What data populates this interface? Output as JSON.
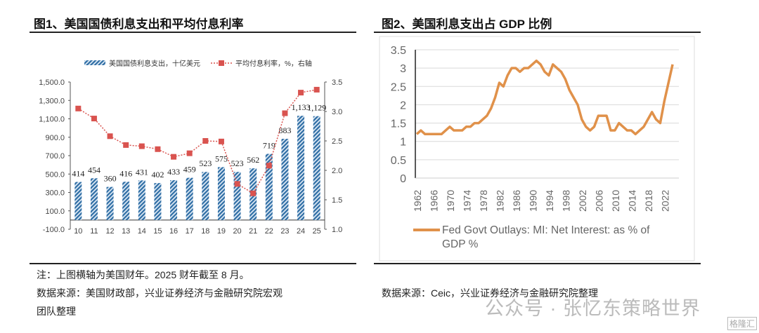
{
  "left": {
    "title": "图1、美国国债利息支出和平均付息利率",
    "note": "注：上图横轴为美国财年。2025 财年截至 8 月。",
    "source_line1": "数据来源：美国财政部，兴业证券经济与金融研究院宏观",
    "source_line2": "团队整理"
  },
  "right": {
    "title": "图2、美国利息支出占 GDP 比例",
    "source": "数据来源：Ceic，兴业证券经济与金融研究院整理"
  },
  "watermark": "公众号 · 张忆东策略世界",
  "watermark2": "格隆汇",
  "chart_data": [
    {
      "type": "bar",
      "categories": [
        "10",
        "11",
        "12",
        "13",
        "14",
        "15",
        "16",
        "17",
        "18",
        "19",
        "20",
        "21",
        "22",
        "23",
        "24",
        "25"
      ],
      "series": [
        {
          "name": "美国国债利息支出，十亿美元",
          "type": "bar",
          "axis": "left",
          "color": "#2e6da4",
          "values": [
            414,
            454,
            360,
            416,
            431,
            402,
            433,
            459,
            523,
            575,
            523,
            562,
            719,
            883,
            1133,
            1129
          ],
          "labels": [
            "414",
            "454",
            "360",
            "416",
            "431",
            "402",
            "433",
            "459",
            "523",
            "575",
            "523",
            "562",
            "719",
            "883",
            "1,133",
            "1,129"
          ]
        },
        {
          "name": "平均付息利率，%，右轴",
          "type": "line",
          "axis": "right",
          "color": "#d9534f",
          "values": [
            3.05,
            2.88,
            2.58,
            2.43,
            2.41,
            2.36,
            2.23,
            2.29,
            2.5,
            2.49,
            1.77,
            1.61,
            2.08,
            2.97,
            3.32,
            3.37
          ]
        }
      ],
      "ylim": [
        -100,
        1500
      ],
      "yticks": [
        "1,500.0",
        "1,300.0",
        "1,100.0",
        "900.0",
        "700.0",
        "500.0",
        "300.0",
        "100.0",
        "-100.0"
      ],
      "y2lim": [
        1.0,
        3.5
      ],
      "y2ticks": [
        "3.5",
        "3.0",
        "2.5",
        "2.0",
        "1.5",
        "1.0"
      ],
      "legend": "top"
    },
    {
      "type": "line",
      "x": [
        1962,
        1963,
        1964,
        1965,
        1966,
        1967,
        1968,
        1969,
        1970,
        1971,
        1972,
        1973,
        1974,
        1975,
        1976,
        1977,
        1978,
        1979,
        1980,
        1981,
        1982,
        1983,
        1984,
        1985,
        1986,
        1987,
        1988,
        1989,
        1990,
        1991,
        1992,
        1993,
        1994,
        1995,
        1996,
        1997,
        1998,
        1999,
        2000,
        2001,
        2002,
        2003,
        2004,
        2005,
        2006,
        2007,
        2008,
        2009,
        2010,
        2011,
        2012,
        2013,
        2014,
        2015,
        2016,
        2017,
        2018,
        2019,
        2020,
        2021,
        2022,
        2023,
        2024
      ],
      "series": [
        {
          "name": "Fed Govt Outlays: MI: Net Interest: as % of GDP %",
          "color": "#e0914a",
          "values": [
            1.2,
            1.3,
            1.2,
            1.2,
            1.2,
            1.2,
            1.2,
            1.3,
            1.4,
            1.3,
            1.3,
            1.3,
            1.4,
            1.4,
            1.5,
            1.5,
            1.6,
            1.7,
            1.9,
            2.2,
            2.6,
            2.5,
            2.8,
            3.0,
            3.0,
            2.9,
            3.0,
            3.0,
            3.1,
            3.2,
            3.1,
            2.9,
            2.8,
            3.1,
            3.0,
            2.9,
            2.7,
            2.4,
            2.2,
            2.0,
            1.6,
            1.4,
            1.3,
            1.4,
            1.7,
            1.7,
            1.7,
            1.3,
            1.3,
            1.5,
            1.4,
            1.3,
            1.3,
            1.2,
            1.3,
            1.4,
            1.6,
            1.8,
            1.6,
            1.5,
            2.1,
            2.6,
            3.1
          ]
        }
      ],
      "xticks": [
        "1962",
        "1966",
        "1970",
        "1974",
        "1978",
        "1982",
        "1986",
        "1990",
        "1994",
        "1998",
        "2002",
        "2006",
        "2010",
        "2014",
        "2018",
        "2022"
      ],
      "ylim": [
        0,
        3.5
      ],
      "yticks": [
        "3.5",
        "3",
        "2.5",
        "2",
        "1.5",
        "1",
        "0.5",
        "0"
      ],
      "grid": true,
      "legend_line1": "Fed Govt Outlays: MI: Net Interest: as % of",
      "legend_line2": "GDP %",
      "legend": "bottom"
    }
  ]
}
